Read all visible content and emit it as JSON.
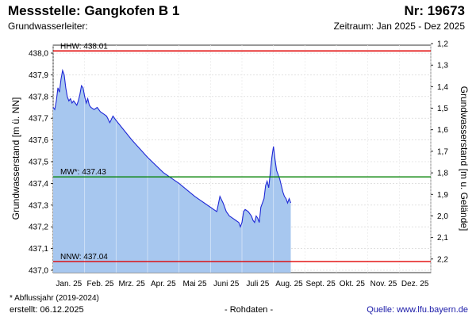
{
  "header": {
    "title": "Messstelle: Gangkofen B 1",
    "number": "Nr: 19673",
    "aquifer": "Grundwasserleiter:",
    "period": "Zeitraum: Jan 2025 - Dez 2025"
  },
  "footer": {
    "note": "* Abflussjahr (2019-2024)",
    "created": "erstellt:  06.12.2025",
    "raw": "- Rohdaten -",
    "source": "Quelle:  www.lfu.bayern.de"
  },
  "chart_data": {
    "type": "area",
    "ylabel": "Grundwasserstand [m ü. NN]",
    "y2label": "Grundwasserstand [m u. Gelände]",
    "ylim": [
      437.0,
      438.0
    ],
    "y2lim": [
      1.2,
      2.3
    ],
    "xlim": [
      0,
      12
    ],
    "y_ticks": [
      {
        "v": 438.0,
        "label": "438,0"
      },
      {
        "v": 437.9,
        "label": "437,9"
      },
      {
        "v": 437.8,
        "label": "437,8"
      },
      {
        "v": 437.7,
        "label": "437,7"
      },
      {
        "v": 437.6,
        "label": "437,6"
      },
      {
        "v": 437.5,
        "label": "437,5"
      },
      {
        "v": 437.4,
        "label": "437,4"
      },
      {
        "v": 437.3,
        "label": "437,3"
      },
      {
        "v": 437.2,
        "label": "437,2"
      },
      {
        "v": 437.1,
        "label": "437,1"
      },
      {
        "v": 437.0,
        "label": "437,0"
      }
    ],
    "y2_ticks": [
      {
        "v": 1.2,
        "label": "1,2"
      },
      {
        "v": 1.3,
        "label": "1,3"
      },
      {
        "v": 1.4,
        "label": "1,4"
      },
      {
        "v": 1.5,
        "label": "1,5"
      },
      {
        "v": 1.6,
        "label": "1,6"
      },
      {
        "v": 1.7,
        "label": "1,7"
      },
      {
        "v": 1.8,
        "label": "1,8"
      },
      {
        "v": 1.9,
        "label": "1,9"
      },
      {
        "v": 2.0,
        "label": "2,0"
      },
      {
        "v": 2.1,
        "label": "2,1"
      },
      {
        "v": 2.2,
        "label": "2,2"
      }
    ],
    "months": [
      "Jan. 25",
      "Feb. 25",
      "Mrz. 25",
      "Apr. 25",
      "Mai 25",
      "Juni 25",
      "Juli 25",
      "Aug. 25",
      "Sept. 25",
      "Okt. 25",
      "Nov. 25",
      "Dez. 25"
    ],
    "reference_lines": [
      {
        "label": "HHW: 438.01",
        "value": 438.01,
        "color": "#e00000"
      },
      {
        "label": "MW*: 437.43",
        "value": 437.43,
        "color": "#008000"
      },
      {
        "label": "NNW: 437.04",
        "value": 437.04,
        "color": "#e00000"
      }
    ],
    "series": [
      {
        "line_color": "#1f28d6",
        "fill_color": "#a7c7ef",
        "points": [
          [
            0.0,
            437.75
          ],
          [
            0.05,
            437.74
          ],
          [
            0.1,
            437.78
          ],
          [
            0.15,
            437.84
          ],
          [
            0.2,
            437.82
          ],
          [
            0.25,
            437.88
          ],
          [
            0.3,
            437.92
          ],
          [
            0.35,
            437.9
          ],
          [
            0.4,
            437.84
          ],
          [
            0.45,
            437.8
          ],
          [
            0.5,
            437.78
          ],
          [
            0.55,
            437.79
          ],
          [
            0.6,
            437.77
          ],
          [
            0.65,
            437.78
          ],
          [
            0.7,
            437.77
          ],
          [
            0.75,
            437.76
          ],
          [
            0.8,
            437.78
          ],
          [
            0.85,
            437.81
          ],
          [
            0.9,
            437.85
          ],
          [
            0.95,
            437.84
          ],
          [
            1.0,
            437.8
          ],
          [
            1.05,
            437.77
          ],
          [
            1.1,
            437.79
          ],
          [
            1.15,
            437.76
          ],
          [
            1.2,
            437.75
          ],
          [
            1.3,
            437.74
          ],
          [
            1.4,
            437.75
          ],
          [
            1.5,
            437.73
          ],
          [
            1.6,
            437.72
          ],
          [
            1.7,
            437.71
          ],
          [
            1.8,
            437.68
          ],
          [
            1.9,
            437.71
          ],
          [
            2.0,
            437.69
          ],
          [
            2.5,
            437.6
          ],
          [
            3.0,
            437.52
          ],
          [
            3.5,
            437.45
          ],
          [
            4.0,
            437.4
          ],
          [
            4.5,
            437.34
          ],
          [
            5.0,
            437.29
          ],
          [
            5.1,
            437.28
          ],
          [
            5.2,
            437.27
          ],
          [
            5.3,
            437.34
          ],
          [
            5.4,
            437.31
          ],
          [
            5.5,
            437.27
          ],
          [
            5.6,
            437.25
          ],
          [
            5.7,
            437.24
          ],
          [
            5.8,
            437.23
          ],
          [
            5.9,
            437.22
          ],
          [
            5.95,
            437.2
          ],
          [
            6.0,
            437.22
          ],
          [
            6.05,
            437.27
          ],
          [
            6.1,
            437.28
          ],
          [
            6.2,
            437.27
          ],
          [
            6.3,
            437.25
          ],
          [
            6.35,
            437.23
          ],
          [
            6.4,
            437.22
          ],
          [
            6.45,
            437.25
          ],
          [
            6.5,
            437.24
          ],
          [
            6.55,
            437.22
          ],
          [
            6.6,
            437.29
          ],
          [
            6.65,
            437.31
          ],
          [
            6.7,
            437.33
          ],
          [
            6.75,
            437.39
          ],
          [
            6.8,
            437.41
          ],
          [
            6.85,
            437.38
          ],
          [
            6.9,
            437.45
          ],
          [
            6.95,
            437.52
          ],
          [
            7.0,
            437.57
          ],
          [
            7.05,
            437.51
          ],
          [
            7.1,
            437.46
          ],
          [
            7.15,
            437.44
          ],
          [
            7.2,
            437.42
          ],
          [
            7.25,
            437.39
          ],
          [
            7.3,
            437.36
          ],
          [
            7.35,
            437.34
          ],
          [
            7.4,
            437.33
          ],
          [
            7.45,
            437.31
          ],
          [
            7.5,
            437.33
          ],
          [
            7.55,
            437.31
          ]
        ]
      }
    ]
  }
}
